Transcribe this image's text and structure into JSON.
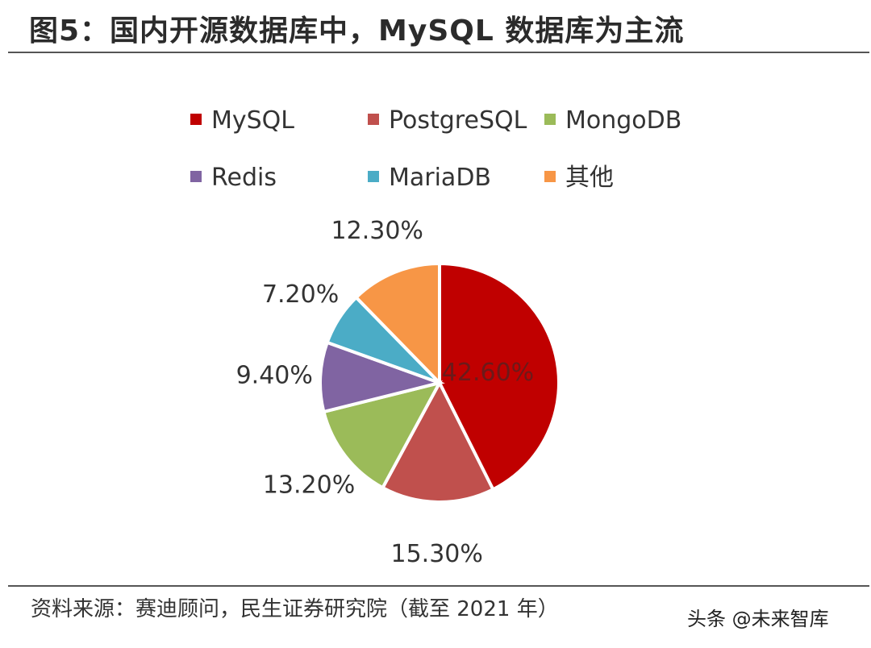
{
  "header": {
    "title": "图5：国内开源数据库中，MySQL 数据库为主流"
  },
  "footer": {
    "source": "资料来源：赛迪顾问，民生证券研究院（截至 2021 年）",
    "watermark": "头条 @未来智库"
  },
  "chart_data": {
    "type": "pie",
    "title": "",
    "legend_position": "top",
    "slices": [
      {
        "label": "MySQL",
        "value": 42.6,
        "display": "42.60%",
        "color": "#C00000"
      },
      {
        "label": "PostgreSQL",
        "value": 15.3,
        "display": "15.30%",
        "color": "#C0504D"
      },
      {
        "label": "MongoDB",
        "value": 13.2,
        "display": "13.20%",
        "color": "#9BBB59"
      },
      {
        "label": "Redis",
        "value": 9.4,
        "display": "9.40%",
        "color": "#8064A2"
      },
      {
        "label": "MariaDB",
        "value": 7.2,
        "display": "7.20%",
        "color": "#4BACC6"
      },
      {
        "label": "其他",
        "value": 12.3,
        "display": "12.30%",
        "color": "#F79646"
      }
    ]
  }
}
